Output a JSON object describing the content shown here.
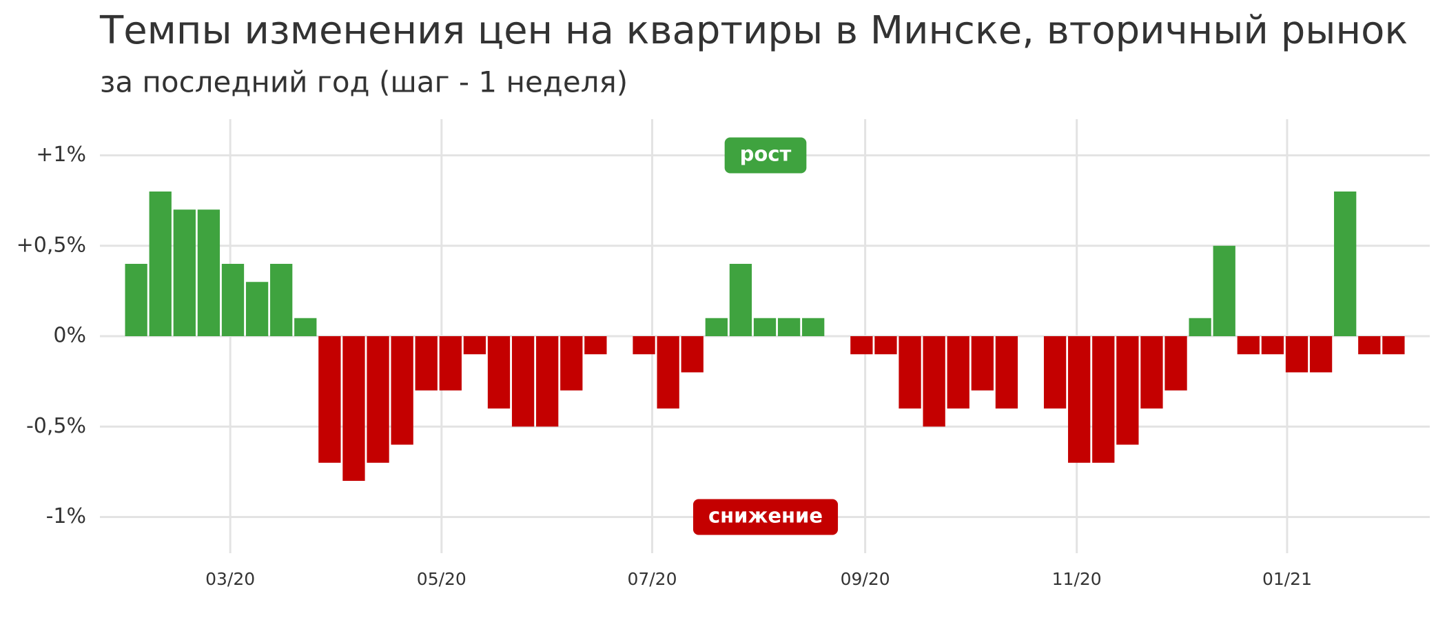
{
  "chart_data": {
    "type": "bar",
    "title": "Темпы изменения цен на квартиры в Минске, вторичный рынок",
    "subtitle": "за последний год (шаг - 1 неделя)",
    "categories": [
      null,
      null,
      null,
      null,
      null,
      null,
      null,
      null,
      null,
      null,
      null,
      null,
      null,
      null,
      null,
      null,
      null,
      null,
      null,
      null,
      null,
      null,
      null,
      null,
      null,
      null,
      null,
      null,
      null,
      null,
      null,
      null,
      null,
      null,
      null,
      null,
      null,
      null,
      null,
      null,
      null,
      null,
      null,
      null,
      null,
      null,
      null,
      null,
      null,
      null,
      null,
      null,
      null
    ],
    "values": [
      0.4,
      0.8,
      0.7,
      0.7,
      0.4,
      0.3,
      0.4,
      0.1,
      -0.7,
      -0.8,
      -0.7,
      -0.6,
      -0.3,
      -0.3,
      -0.1,
      -0.4,
      -0.5,
      -0.5,
      -0.3,
      -0.1,
      0,
      -0.1,
      -0.4,
      -0.2,
      0.1,
      0.4,
      0.1,
      0.1,
      0.1,
      0,
      -0.1,
      -0.1,
      -0.4,
      -0.5,
      -0.4,
      -0.3,
      -0.4,
      0,
      -0.4,
      -0.7,
      -0.7,
      -0.6,
      -0.4,
      -0.3,
      0.1,
      0.5,
      -0.1,
      -0.1,
      -0.2,
      -0.2,
      0.8,
      -0.1,
      -0.1
    ],
    "colors": {
      "positive": "#3fa33f",
      "negative": "#c40000"
    },
    "xlim": [
      -1.5,
      53.5
    ],
    "xticks": [
      {
        "value": 3.89,
        "label": "03/20"
      },
      {
        "value": 12.63,
        "label": "05/20"
      },
      {
        "value": 21.34,
        "label": "07/20"
      },
      {
        "value": 30.15,
        "label": "09/20"
      },
      {
        "value": 38.9,
        "label": "11/20"
      },
      {
        "value": 47.6,
        "label": "01/21"
      }
    ],
    "ylim": [
      -1.2,
      1.2
    ],
    "yticks": [
      {
        "value": 1,
        "label": "+1%"
      },
      {
        "value": 0.5,
        "label": "+0,5%"
      },
      {
        "value": 0,
        "label": "0%"
      },
      {
        "value": -0.5,
        "label": "-0,5%"
      },
      {
        "value": -1,
        "label": "-1%"
      }
    ],
    "grid": true,
    "annotations": [
      {
        "text": "рост",
        "color": "#3fa33f"
      },
      {
        "text": "снижение",
        "color": "#c40000"
      }
    ]
  }
}
